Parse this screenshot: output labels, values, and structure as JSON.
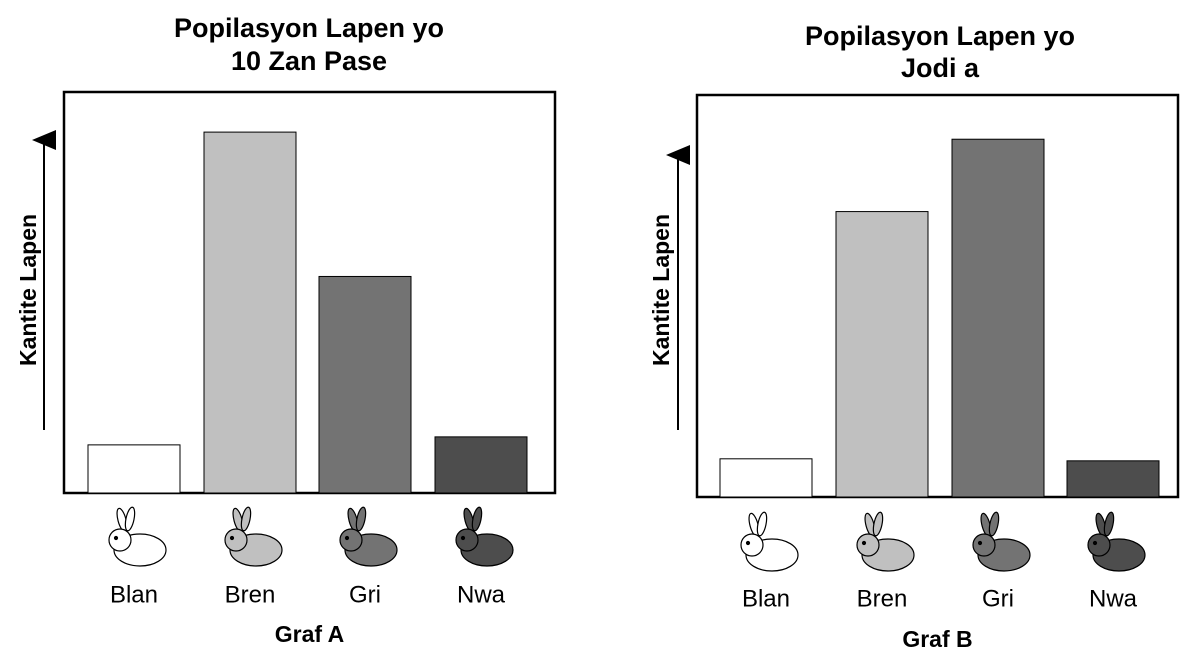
{
  "chart_data": [
    {
      "type": "bar",
      "title": [
        "Popilasyon Lapen yo",
        "10 Zan Pase"
      ],
      "ylabel": "Kantite Lapen",
      "xlabel": "Graf A",
      "categories": [
        "Blan",
        "Bren",
        "Gri",
        "Nwa"
      ],
      "values": [
        12,
        90,
        54,
        14
      ],
      "colors": [
        "#ffffff",
        "#c0c0c0",
        "#737373",
        "#4d4d4d"
      ],
      "ylim": [
        0,
        100
      ]
    },
    {
      "type": "bar",
      "title": [
        "Popilasyon Lapen yo",
        "Jodi a"
      ],
      "ylabel": "Kantite Lapen",
      "xlabel": "Graf B",
      "categories": [
        "Blan",
        "Bren",
        "Gri",
        "Nwa"
      ],
      "values": [
        9.5,
        71,
        89,
        9
      ],
      "colors": [
        "#ffffff",
        "#c0c0c0",
        "#737373",
        "#4d4d4d"
      ],
      "ylim": [
        0,
        100
      ]
    }
  ]
}
